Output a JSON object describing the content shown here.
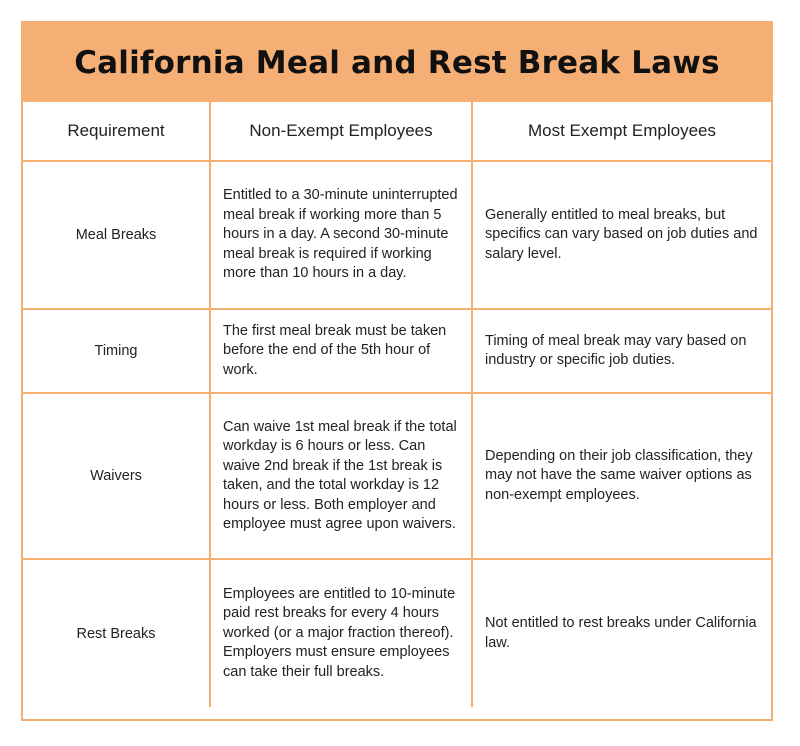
{
  "title": "California Meal and Rest Break Laws",
  "columns": [
    "Requirement",
    "Non-Exempt Employees",
    "Most Exempt Employees"
  ],
  "rows": [
    {
      "requirement": "Meal Breaks",
      "non_exempt": "Entitled to a 30-minute uninterrupted meal break if working more than 5 hours in a day. A second 30-minute meal break is required if working more than 10 hours in a day.",
      "exempt": "Generally entitled to meal breaks, but specifics can vary based on job duties and salary level."
    },
    {
      "requirement": "Timing",
      "non_exempt": "The first meal break must be taken before the end of the 5th hour of work.",
      "exempt": "Timing of meal break may vary based on industry or specific job duties."
    },
    {
      "requirement": "Waivers",
      "non_exempt": "Can waive 1st meal break if the total workday is 6 hours or less. Can waive 2nd break if the 1st break is taken, and the total workday is 12 hours or less. Both employer and employee must agree upon waivers.",
      "exempt": "Depending on their job classification, they may not have the same waiver options as non-exempt employees."
    },
    {
      "requirement": "Rest Breaks",
      "non_exempt": "Employees are entitled to 10-minute paid rest breaks for every 4 hours worked (or a major fraction thereof). Employers must ensure employees can take their full breaks.",
      "exempt": "Not entitled to rest breaks under California law."
    }
  ],
  "colors": {
    "header_bg": "#f5ae74",
    "border": "#f3ae72"
  }
}
